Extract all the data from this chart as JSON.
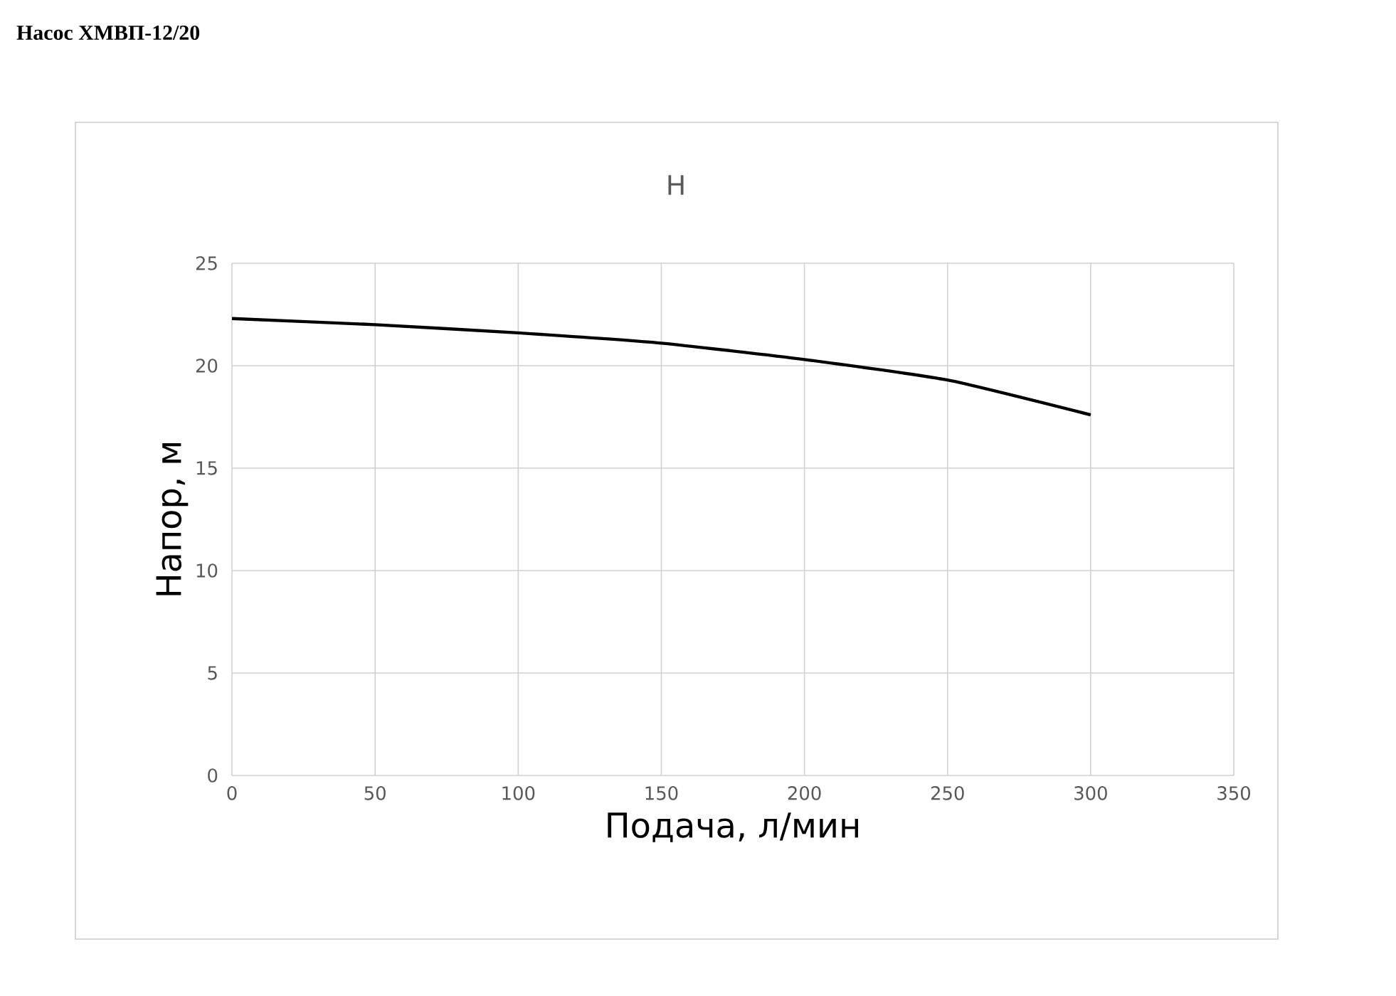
{
  "chart_data": {
    "type": "line",
    "title": "Насос ХМВП-12/20",
    "subtitle": "H",
    "xlabel": "Подача, л/мин",
    "ylabel": "Напор, м",
    "x": [
      0,
      50,
      100,
      150,
      200,
      250,
      300
    ],
    "series": [
      {
        "color": "#000000",
        "values": [
          22.3,
          22.0,
          21.6,
          21.1,
          20.3,
          19.3,
          17.6
        ]
      }
    ],
    "xlim": [
      0,
      350
    ],
    "ylim": [
      0,
      25
    ],
    "xticks": [
      0,
      50,
      100,
      150,
      200,
      250,
      300,
      350
    ],
    "yticks": [
      0,
      5,
      10,
      15,
      20,
      25
    ],
    "grid": true,
    "marker": "none",
    "line_style": "solid"
  }
}
